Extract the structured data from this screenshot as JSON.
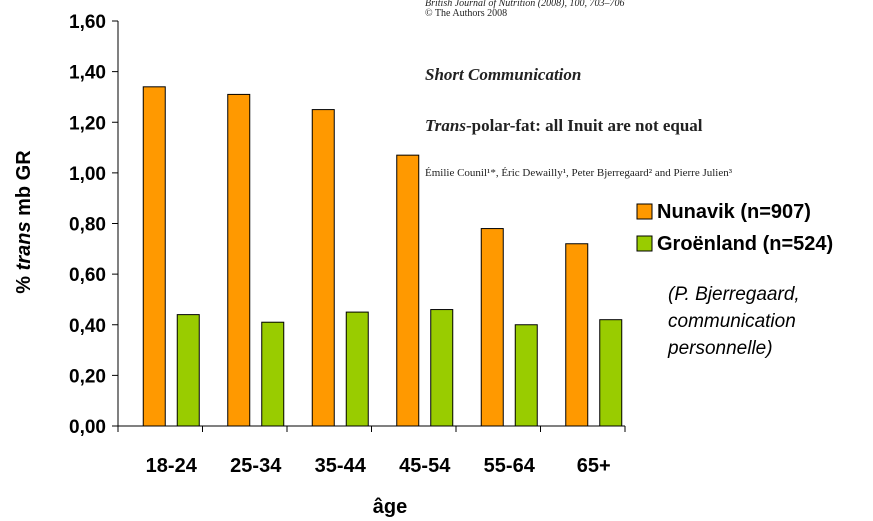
{
  "chart_data": {
    "type": "bar",
    "categories": [
      "18-24",
      "25-34",
      "35-44",
      "45-54",
      "55-64",
      "65+"
    ],
    "series": [
      {
        "name": "Nunavik (n=907)",
        "values": [
          1.34,
          1.31,
          1.25,
          1.07,
          0.78,
          0.72
        ],
        "color": "#FF9900"
      },
      {
        "name": "Groënland (n=524)",
        "values": [
          0.44,
          0.41,
          0.45,
          0.46,
          0.4,
          0.42
        ],
        "color": "#99CC00"
      }
    ],
    "yticks": [
      "0,00",
      "0,20",
      "0,40",
      "0,60",
      "0,80",
      "1,00",
      "1,20",
      "1,40",
      "1,60"
    ],
    "ylim": [
      0,
      1.6
    ],
    "xlabel": "âge",
    "ylabel": {
      "prefix": "% ",
      "italic": "trans",
      "suffix": " mb GR"
    },
    "legend_position": "right",
    "grid": false
  },
  "paper_overlay": {
    "journal_line": "British Journal of Nutrition (2008), 100, 703–706",
    "copyright_line": "© The Authors 2008",
    "heading": "Short Communication",
    "title_italic": "Trans",
    "title_rest": "-polar-fat: all Inuit are not equal",
    "authors": "Émilie Counil¹*, Éric Dewailly¹, Peter Bjerregaard² and Pierre Julien³"
  },
  "note": {
    "lines": [
      "(P. Bjerregaard,",
      "communication",
      "personnelle)"
    ]
  }
}
